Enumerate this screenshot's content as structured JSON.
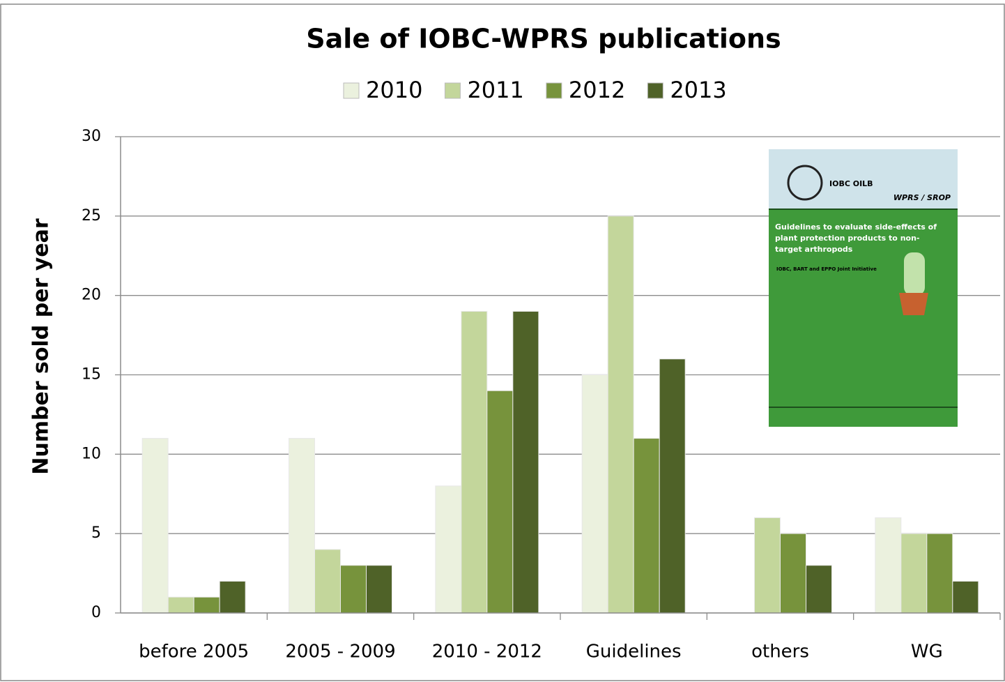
{
  "chart_data": {
    "type": "bar",
    "title": "Sale of IOBC-WPRS publications",
    "y_label": "Number sold per year",
    "categories": [
      "before 2005",
      "2005 - 2009",
      "2010 - 2012",
      "Guidelines",
      "others",
      "WG"
    ],
    "series": [
      {
        "name": "2010",
        "color": "#ebf1de",
        "values": [
          11,
          11,
          8,
          15,
          0,
          6
        ]
      },
      {
        "name": "2011",
        "color": "#c3d69b",
        "values": [
          1,
          4,
          19,
          25,
          6,
          5
        ]
      },
      {
        "name": "2012",
        "color": "#77933c",
        "values": [
          1,
          3,
          14,
          11,
          5,
          5
        ]
      },
      {
        "name": "2013",
        "color": "#4f6228",
        "values": [
          2,
          3,
          19,
          16,
          3,
          2
        ]
      }
    ],
    "ylim": [
      0,
      30
    ],
    "yticks": [
      0,
      5,
      10,
      15,
      20,
      25,
      30
    ],
    "grid": true,
    "legend": "top",
    "inset_image": {
      "logo": "IOBC OILB",
      "section": "WPRS / SROP",
      "title": "Guidelines to evaluate side-effects of plant protection products to non-target arthropods",
      "subtitle": "IOBC, BART and EPPO Joint Initiative"
    }
  }
}
